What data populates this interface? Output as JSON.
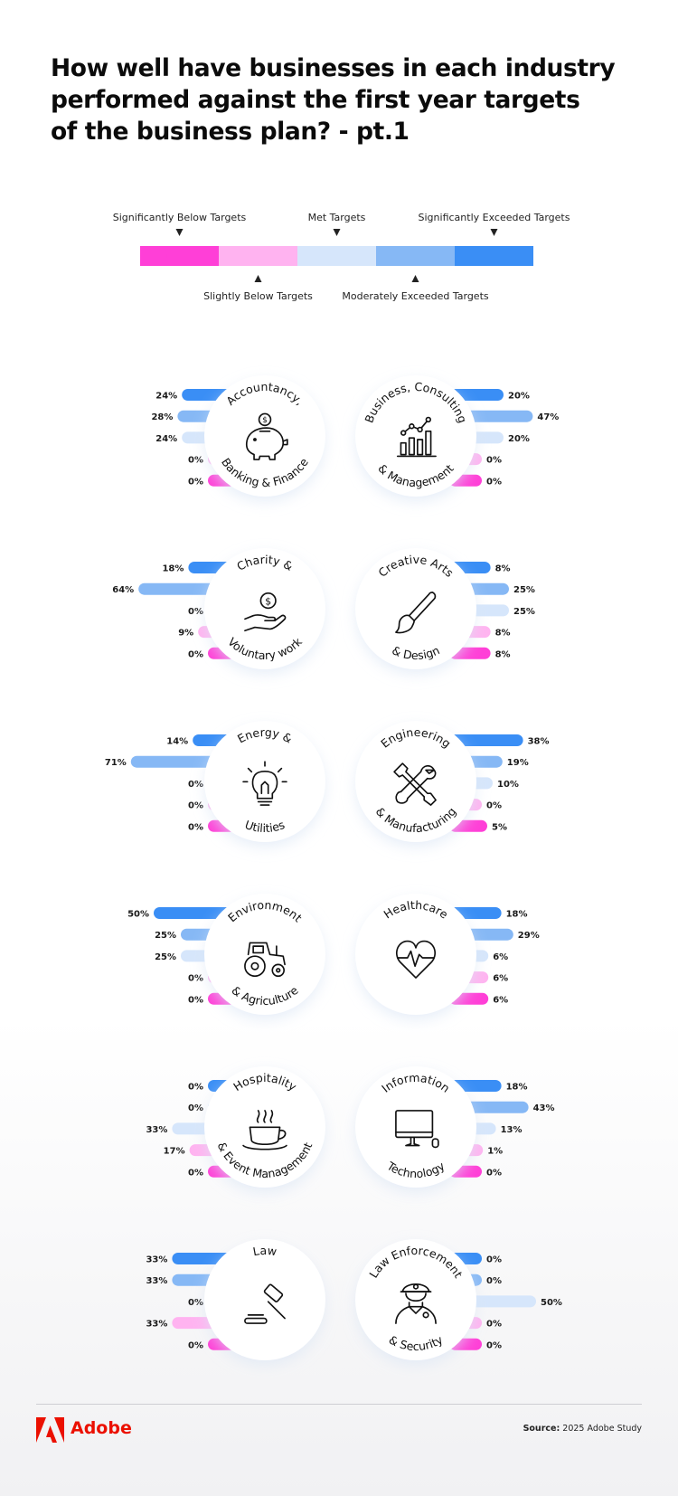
{
  "title": {
    "line1": "How well have businesses in each industry",
    "line2": "performed against the first year targets",
    "line3": "of the business plan? - pt.1"
  },
  "legend": {
    "items": [
      {
        "label": "Significantly Below Targets",
        "color": "#ff3fd7"
      },
      {
        "label": "Slightly Below Targets",
        "color": "#ffb3f0"
      },
      {
        "label": "Met Targets",
        "color": "#d6e6fb"
      },
      {
        "label": "Moderately Exceeded Targets",
        "color": "#86b8f5"
      },
      {
        "label": "Significantly Exceeded Targets",
        "color": "#3a8ef5"
      }
    ]
  },
  "chart_data": {
    "type": "bar",
    "bar_order": [
      "Significantly Exceeded Targets",
      "Moderately Exceeded Targets",
      "Met Targets",
      "Slightly Below Targets",
      "Significantly Below Targets"
    ],
    "industries": [
      {
        "name": [
          "Accountancy,",
          "Banking & Finance"
        ],
        "icon": "piggy-bank-icon",
        "side": "left",
        "values": [
          24,
          28,
          24,
          0,
          0
        ]
      },
      {
        "name": [
          "Business, Consulting",
          "& Management"
        ],
        "icon": "bar-chart-icon",
        "side": "right",
        "values": [
          20,
          47,
          20,
          0,
          0
        ]
      },
      {
        "name": [
          "Charity &",
          "Voluntary work"
        ],
        "icon": "hand-coin-icon",
        "side": "left",
        "values": [
          18,
          64,
          0,
          9,
          0
        ]
      },
      {
        "name": [
          "Creative Arts",
          "& Design"
        ],
        "icon": "paintbrush-icon",
        "side": "right",
        "values": [
          8,
          25,
          25,
          8,
          8
        ]
      },
      {
        "name": [
          "Energy &",
          "Utilities"
        ],
        "icon": "lightbulb-icon",
        "side": "left",
        "values": [
          14,
          71,
          0,
          0,
          0
        ]
      },
      {
        "name": [
          "Engineering",
          "& Manufacturing"
        ],
        "icon": "wrench-screwdriver-icon",
        "side": "right",
        "values": [
          38,
          19,
          10,
          0,
          5
        ]
      },
      {
        "name": [
          "Environment",
          "& Agriculture"
        ],
        "icon": "tractor-icon",
        "side": "left",
        "values": [
          50,
          25,
          25,
          0,
          0
        ]
      },
      {
        "name": [
          "Healthcare",
          ""
        ],
        "icon": "heartbeat-icon",
        "side": "right",
        "values": [
          18,
          29,
          6,
          6,
          6
        ]
      },
      {
        "name": [
          "Hospitality",
          "& Event Management"
        ],
        "icon": "coffee-cup-icon",
        "side": "left",
        "values": [
          0,
          0,
          33,
          17,
          0
        ]
      },
      {
        "name": [
          "Information",
          "Technology"
        ],
        "icon": "computer-icon",
        "side": "right",
        "values": [
          18,
          43,
          13,
          1,
          0
        ]
      },
      {
        "name": [
          "Law",
          ""
        ],
        "icon": "gavel-icon",
        "side": "left",
        "values": [
          33,
          33,
          0,
          33,
          0
        ]
      },
      {
        "name": [
          "Law Enforcement",
          "& Security"
        ],
        "icon": "police-officer-icon",
        "side": "right",
        "values": [
          0,
          0,
          50,
          0,
          0
        ]
      }
    ]
  },
  "footer": {
    "brand": "Adobe",
    "source_label": "Source:",
    "source_text": "2025 Adobe Study"
  }
}
